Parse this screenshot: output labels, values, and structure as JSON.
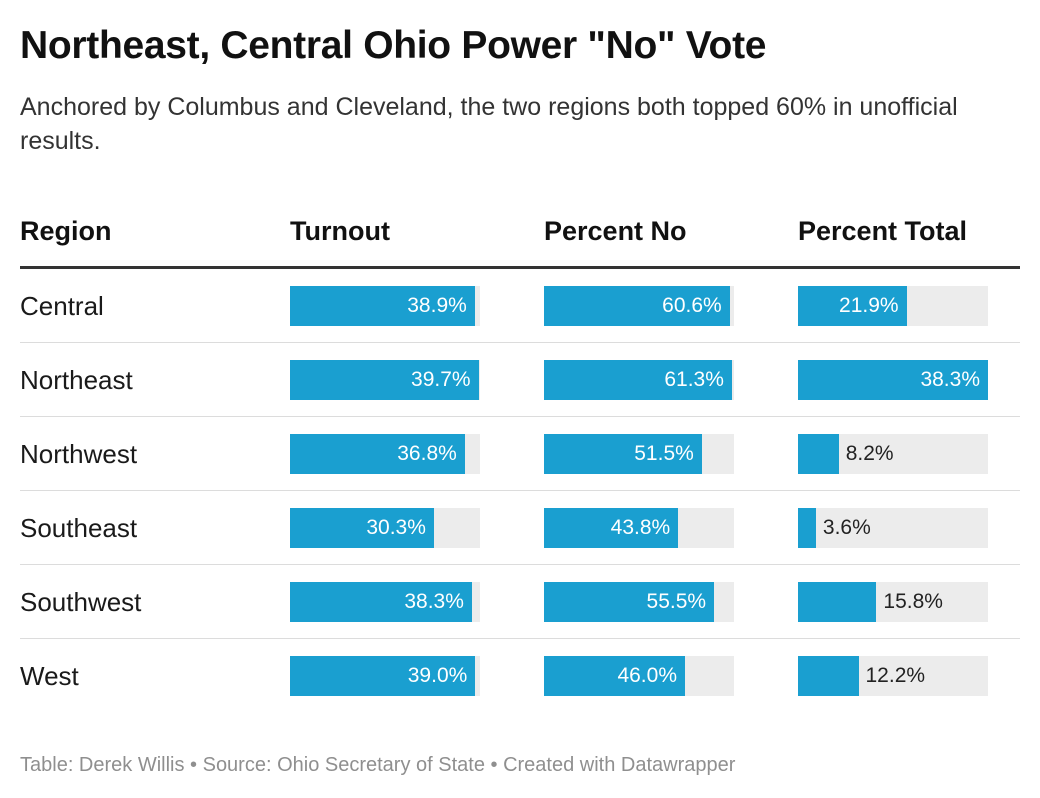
{
  "title": "Northeast, Central Ohio Power \"No\" Vote",
  "subtitle": "Anchored by Columbus and Cleveland, the two regions both topped 60% in unofficial results.",
  "columns": {
    "region": "Region",
    "turnout": "Turnout",
    "percent_no": "Percent No",
    "percent_total": "Percent Total"
  },
  "footer": "Table: Derek Willis • Source: Ohio Secretary of State • Created with Datawrapper",
  "colors": {
    "bar": "#1a9fd0",
    "track": "#ececec"
  },
  "chart_data": {
    "type": "table",
    "columns": [
      "Region",
      "Turnout",
      "Percent No",
      "Percent Total"
    ],
    "bar_max": {
      "turnout": 40,
      "percent_no": 62,
      "percent_total": 38.3
    },
    "rows": [
      {
        "region": "Central",
        "turnout": 38.9,
        "turnout_label": "38.9%",
        "percent_no": 60.6,
        "percent_no_label": "60.6%",
        "percent_total": 21.9,
        "percent_total_label": "21.9%"
      },
      {
        "region": "Northeast",
        "turnout": 39.7,
        "turnout_label": "39.7%",
        "percent_no": 61.3,
        "percent_no_label": "61.3%",
        "percent_total": 38.3,
        "percent_total_label": "38.3%"
      },
      {
        "region": "Northwest",
        "turnout": 36.8,
        "turnout_label": "36.8%",
        "percent_no": 51.5,
        "percent_no_label": "51.5%",
        "percent_total": 8.2,
        "percent_total_label": "8.2%"
      },
      {
        "region": "Southeast",
        "turnout": 30.3,
        "turnout_label": "30.3%",
        "percent_no": 43.8,
        "percent_no_label": "43.8%",
        "percent_total": 3.6,
        "percent_total_label": "3.6%"
      },
      {
        "region": "Southwest",
        "turnout": 38.3,
        "turnout_label": "38.3%",
        "percent_no": 55.5,
        "percent_no_label": "55.5%",
        "percent_total": 15.8,
        "percent_total_label": "15.8%"
      },
      {
        "region": "West",
        "turnout": 39.0,
        "turnout_label": "39.0%",
        "percent_no": 46.0,
        "percent_no_label": "46.0%",
        "percent_total": 12.2,
        "percent_total_label": "12.2%"
      }
    ]
  }
}
